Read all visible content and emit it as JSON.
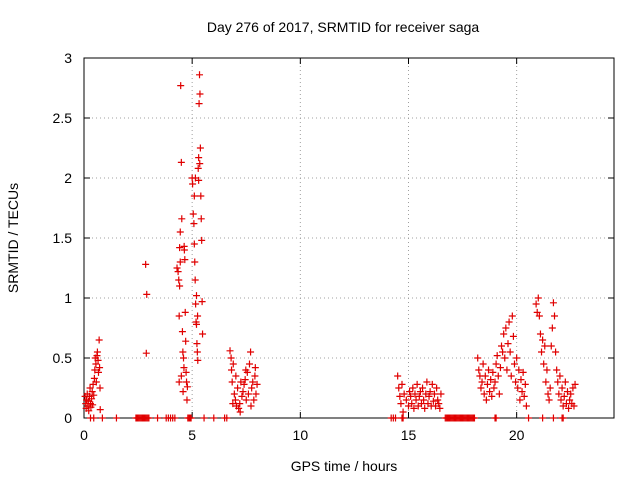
{
  "chart_data": {
    "type": "scatter",
    "title": "Day 276 of 2017, SRMTID for receiver saga",
    "xlabel": "GPS time / hours",
    "ylabel": "SRMTID / TECUs",
    "xlim": [
      0,
      24.5
    ],
    "ylim": [
      0,
      3
    ],
    "x_ticks": [
      0,
      5,
      10,
      15,
      20
    ],
    "y_ticks": [
      0,
      0.5,
      1,
      1.5,
      2,
      2.5,
      3
    ],
    "y_tick_labels": [
      "0",
      "0.5",
      "1",
      "1.5",
      "2",
      "2.5",
      "3"
    ],
    "grid": true,
    "marker": "+",
    "color": "#e00000",
    "series": [
      {
        "name": "SRMTID",
        "points": [
          [
            0.05,
            0.18
          ],
          [
            0.08,
            0.12
          ],
          [
            0.1,
            0.08
          ],
          [
            0.12,
            0.15
          ],
          [
            0.15,
            0.2
          ],
          [
            0.18,
            0.1
          ],
          [
            0.2,
            0.14
          ],
          [
            0.22,
            0.06
          ],
          [
            0.25,
            0.18
          ],
          [
            0.28,
            0.25
          ],
          [
            0.3,
            0.12
          ],
          [
            0.32,
            0.09
          ],
          [
            0.35,
            0.16
          ],
          [
            0.38,
            0.22
          ],
          [
            0.4,
            0.11
          ],
          [
            0.42,
            0.28
          ],
          [
            0.45,
            0.19
          ],
          [
            0.48,
            0.33
          ],
          [
            0.5,
            0.4
          ],
          [
            0.52,
            0.5
          ],
          [
            0.55,
            0.45
          ],
          [
            0.57,
            0.3
          ],
          [
            0.6,
            0.52
          ],
          [
            0.62,
            0.55
          ],
          [
            0.65,
            0.48
          ],
          [
            0.67,
            0.38
          ],
          [
            0.7,
            0.65
          ],
          [
            0.72,
            0.42
          ],
          [
            0.74,
            0.25
          ],
          [
            0.75,
            0.07
          ],
          [
            2.85,
            1.28
          ],
          [
            2.9,
            1.03
          ],
          [
            2.88,
            0.54
          ],
          [
            4.3,
            1.25
          ],
          [
            4.35,
            1.22
          ],
          [
            4.38,
            1.15
          ],
          [
            4.4,
            0.85
          ],
          [
            4.42,
            1.42
          ],
          [
            4.45,
            1.55
          ],
          [
            4.47,
            2.77
          ],
          [
            4.5,
            2.13
          ],
          [
            4.52,
            1.66
          ],
          [
            4.55,
            0.72
          ],
          [
            4.57,
            0.55
          ],
          [
            4.6,
            0.5
          ],
          [
            4.62,
            0.42
          ],
          [
            4.64,
            1.4
          ],
          [
            4.66,
            1.32
          ],
          [
            4.68,
            0.88
          ],
          [
            4.7,
            0.64
          ],
          [
            4.72,
            0.38
          ],
          [
            4.74,
            0.3
          ],
          [
            4.76,
            0.15
          ],
          [
            4.78,
            0.26
          ],
          [
            4.4,
            0.3
          ],
          [
            4.5,
            0.35
          ],
          [
            4.58,
            0.22
          ],
          [
            4.42,
            1.1
          ],
          [
            4.63,
            1.43
          ],
          [
            4.45,
            1.3
          ],
          [
            5.0,
            2.0
          ],
          [
            5.02,
            1.95
          ],
          [
            5.05,
            1.7
          ],
          [
            5.08,
            1.62
          ],
          [
            5.1,
            1.45
          ],
          [
            5.12,
            1.3
          ],
          [
            5.14,
            1.15
          ],
          [
            5.16,
            0.95
          ],
          [
            5.18,
            0.8
          ],
          [
            5.2,
            0.78
          ],
          [
            5.22,
            0.62
          ],
          [
            5.24,
            0.55
          ],
          [
            5.26,
            0.48
          ],
          [
            5.28,
            2.08
          ],
          [
            5.3,
            2.17
          ],
          [
            5.32,
            2.62
          ],
          [
            5.34,
            2.86
          ],
          [
            5.36,
            2.7
          ],
          [
            5.38,
            2.25
          ],
          [
            5.4,
            1.85
          ],
          [
            5.42,
            1.66
          ],
          [
            5.44,
            1.48
          ],
          [
            5.46,
            0.97
          ],
          [
            5.48,
            0.7
          ],
          [
            5.1,
            1.85
          ],
          [
            5.2,
            1.02
          ],
          [
            5.25,
            0.85
          ],
          [
            5.15,
            2.0
          ],
          [
            5.35,
            2.12
          ],
          [
            5.3,
            1.98
          ],
          [
            6.8,
            0.5
          ],
          [
            6.82,
            0.4
          ],
          [
            6.85,
            0.3
          ],
          [
            6.9,
            0.45
          ],
          [
            6.95,
            0.2
          ],
          [
            7.0,
            0.15
          ],
          [
            7.05,
            0.1
          ],
          [
            7.1,
            0.25
          ],
          [
            7.15,
            0.08
          ],
          [
            7.2,
            0.12
          ],
          [
            7.25,
            0.3
          ],
          [
            7.3,
            0.18
          ],
          [
            7.35,
            0.22
          ],
          [
            7.4,
            0.28
          ],
          [
            7.45,
            0.32
          ],
          [
            7.5,
            0.15
          ],
          [
            7.55,
            0.38
          ],
          [
            7.6,
            0.2
          ],
          [
            7.65,
            0.45
          ],
          [
            7.7,
            0.55
          ],
          [
            7.75,
            0.25
          ],
          [
            7.8,
            0.3
          ],
          [
            7.85,
            0.15
          ],
          [
            7.9,
            0.35
          ],
          [
            7.95,
            0.2
          ],
          [
            8.0,
            0.28
          ],
          [
            6.75,
            0.56
          ],
          [
            6.88,
            0.12
          ],
          [
            7.02,
            0.35
          ],
          [
            7.22,
            0.05
          ],
          [
            7.48,
            0.4
          ],
          [
            7.72,
            0.1
          ],
          [
            7.92,
            0.42
          ],
          [
            14.5,
            0.35
          ],
          [
            14.55,
            0.25
          ],
          [
            14.6,
            0.18
          ],
          [
            14.65,
            0.12
          ],
          [
            14.7,
            0.28
          ],
          [
            14.75,
            0.05
          ],
          [
            14.8,
            0.2
          ],
          [
            14.9,
            0.15
          ],
          [
            15.0,
            0.1
          ],
          [
            15.05,
            0.22
          ],
          [
            15.1,
            0.18
          ],
          [
            15.15,
            0.12
          ],
          [
            15.2,
            0.25
          ],
          [
            15.25,
            0.08
          ],
          [
            15.3,
            0.2
          ],
          [
            15.35,
            0.15
          ],
          [
            15.4,
            0.28
          ],
          [
            15.45,
            0.1
          ],
          [
            15.5,
            0.18
          ],
          [
            15.55,
            0.22
          ],
          [
            15.6,
            0.12
          ],
          [
            15.65,
            0.25
          ],
          [
            15.7,
            0.15
          ],
          [
            15.75,
            0.08
          ],
          [
            15.8,
            0.2
          ],
          [
            15.85,
            0.3
          ],
          [
            15.9,
            0.12
          ],
          [
            15.95,
            0.18
          ],
          [
            16.0,
            0.22
          ],
          [
            16.05,
            0.1
          ],
          [
            16.1,
            0.28
          ],
          [
            16.15,
            0.14
          ],
          [
            16.2,
            0.2
          ],
          [
            16.25,
            0.1
          ],
          [
            16.3,
            0.25
          ],
          [
            16.35,
            0.15
          ],
          [
            16.4,
            0.12
          ],
          [
            16.45,
            0.08
          ],
          [
            16.5,
            0.2
          ],
          [
            18.2,
            0.5
          ],
          [
            18.25,
            0.4
          ],
          [
            18.3,
            0.35
          ],
          [
            18.35,
            0.25
          ],
          [
            18.4,
            0.3
          ],
          [
            18.45,
            0.45
          ],
          [
            18.5,
            0.2
          ],
          [
            18.55,
            0.35
          ],
          [
            18.6,
            0.15
          ],
          [
            18.65,
            0.28
          ],
          [
            18.7,
            0.4
          ],
          [
            18.75,
            0.22
          ],
          [
            18.8,
            0.32
          ],
          [
            18.85,
            0.18
          ],
          [
            18.9,
            0.38
          ],
          [
            18.95,
            0.25
          ],
          [
            19.0,
            0.3
          ],
          [
            19.05,
            0.45
          ],
          [
            19.1,
            0.52
          ],
          [
            19.15,
            0.35
          ],
          [
            19.2,
            0.2
          ],
          [
            19.25,
            0.42
          ],
          [
            19.3,
            0.6
          ],
          [
            19.35,
            0.55
          ],
          [
            19.4,
            0.7
          ],
          [
            19.45,
            0.5
          ],
          [
            19.5,
            0.75
          ],
          [
            19.55,
            0.4
          ],
          [
            19.6,
            0.62
          ],
          [
            19.65,
            0.8
          ],
          [
            19.7,
            0.55
          ],
          [
            19.75,
            0.35
          ],
          [
            19.8,
            0.85
          ],
          [
            19.85,
            0.68
          ],
          [
            19.9,
            0.45
          ],
          [
            19.95,
            0.3
          ],
          [
            20.0,
            0.5
          ],
          [
            20.05,
            0.25
          ],
          [
            20.1,
            0.4
          ],
          [
            20.15,
            0.15
          ],
          [
            20.2,
            0.32
          ],
          [
            20.25,
            0.22
          ],
          [
            20.3,
            0.38
          ],
          [
            20.35,
            0.18
          ],
          [
            20.4,
            0.28
          ],
          [
            20.45,
            0.1
          ],
          [
            20.9,
            0.95
          ],
          [
            20.95,
            0.88
          ],
          [
            21.0,
            1.0
          ],
          [
            21.05,
            0.85
          ],
          [
            21.1,
            0.7
          ],
          [
            21.15,
            0.55
          ],
          [
            21.2,
            0.65
          ],
          [
            21.25,
            0.45
          ],
          [
            21.3,
            0.6
          ],
          [
            21.35,
            0.3
          ],
          [
            21.4,
            0.4
          ],
          [
            21.45,
            0.2
          ],
          [
            21.5,
            0.15
          ],
          [
            21.55,
            0.25
          ],
          [
            21.6,
            0.6
          ],
          [
            21.65,
            0.75
          ],
          [
            21.7,
            0.96
          ],
          [
            21.75,
            0.85
          ],
          [
            21.8,
            0.55
          ],
          [
            21.85,
            0.4
          ],
          [
            21.9,
            0.3
          ],
          [
            21.95,
            0.2
          ],
          [
            22.0,
            0.35
          ],
          [
            22.05,
            0.15
          ],
          [
            22.1,
            0.25
          ],
          [
            22.15,
            0.1
          ],
          [
            22.2,
            0.18
          ],
          [
            22.25,
            0.3
          ],
          [
            22.3,
            0.12
          ],
          [
            22.35,
            0.22
          ],
          [
            22.4,
            0.08
          ],
          [
            22.45,
            0.15
          ],
          [
            22.5,
            0.2
          ],
          [
            22.55,
            0.12
          ],
          [
            22.6,
            0.25
          ],
          [
            22.65,
            0.1
          ],
          [
            22.7,
            0.28
          ],
          [
            0.3,
            0.0
          ],
          [
            0.45,
            0.0
          ],
          [
            0.85,
            0.0
          ],
          [
            1.5,
            0.0
          ],
          [
            2.4,
            0.0
          ],
          [
            2.45,
            0.0
          ],
          [
            2.5,
            0.0
          ],
          [
            2.55,
            0.0
          ],
          [
            2.6,
            0.0
          ],
          [
            2.65,
            0.0
          ],
          [
            2.7,
            0.0
          ],
          [
            2.75,
            0.0
          ],
          [
            2.8,
            0.0
          ],
          [
            2.85,
            0.0
          ],
          [
            2.9,
            0.0
          ],
          [
            2.95,
            0.0
          ],
          [
            3.0,
            0.0
          ],
          [
            3.4,
            0.0
          ],
          [
            3.8,
            0.0
          ],
          [
            3.9,
            0.0
          ],
          [
            4.0,
            0.0
          ],
          [
            4.1,
            0.0
          ],
          [
            4.2,
            0.0
          ],
          [
            4.8,
            0.0
          ],
          [
            4.85,
            0.0
          ],
          [
            4.9,
            0.0
          ],
          [
            4.95,
            0.0
          ],
          [
            5.55,
            0.0
          ],
          [
            6.0,
            0.0
          ],
          [
            6.5,
            0.0
          ],
          [
            6.6,
            0.0
          ],
          [
            14.2,
            0.0
          ],
          [
            14.3,
            0.0
          ],
          [
            14.4,
            0.0
          ],
          [
            14.7,
            0.0
          ],
          [
            14.75,
            0.0
          ],
          [
            16.7,
            0.0
          ],
          [
            16.75,
            0.0
          ],
          [
            16.8,
            0.0
          ],
          [
            16.85,
            0.0
          ],
          [
            16.9,
            0.0
          ],
          [
            16.95,
            0.0
          ],
          [
            17.0,
            0.0
          ],
          [
            17.05,
            0.0
          ],
          [
            17.1,
            0.0
          ],
          [
            17.15,
            0.0
          ],
          [
            17.2,
            0.0
          ],
          [
            17.25,
            0.0
          ],
          [
            17.3,
            0.0
          ],
          [
            17.35,
            0.0
          ],
          [
            17.4,
            0.0
          ],
          [
            17.45,
            0.0
          ],
          [
            17.5,
            0.0
          ],
          [
            17.55,
            0.0
          ],
          [
            17.6,
            0.0
          ],
          [
            17.65,
            0.0
          ],
          [
            17.7,
            0.0
          ],
          [
            17.75,
            0.0
          ],
          [
            17.8,
            0.0
          ],
          [
            17.85,
            0.0
          ],
          [
            17.9,
            0.0
          ],
          [
            17.95,
            0.0
          ],
          [
            18.0,
            0.0
          ],
          [
            18.05,
            0.0
          ],
          [
            19.0,
            0.0
          ],
          [
            19.05,
            0.0
          ],
          [
            20.55,
            0.0
          ],
          [
            21.2,
            0.0
          ],
          [
            21.7,
            0.0
          ],
          [
            22.1,
            0.0
          ],
          [
            22.15,
            0.0
          ]
        ]
      }
    ]
  }
}
